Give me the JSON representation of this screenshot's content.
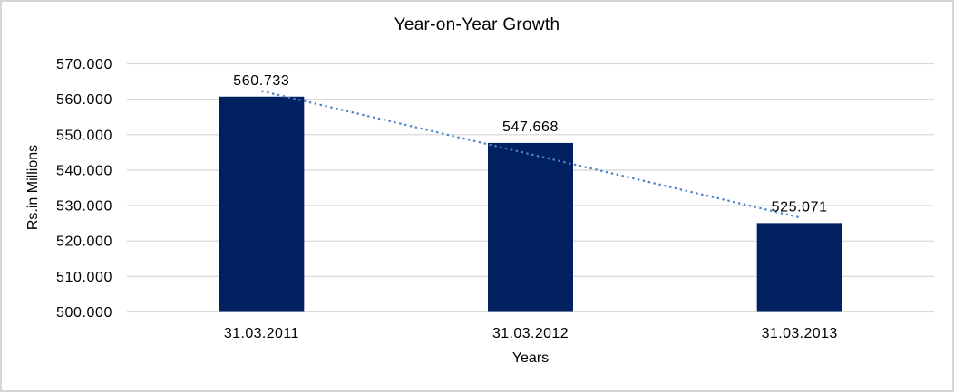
{
  "colors": {
    "bar": "#002060",
    "trendline": "#4d82c4",
    "gridline": "#d9d9d9",
    "text": "#000000",
    "frame_border": "#d5d5d5",
    "background": "#ffffff"
  },
  "chart_data": {
    "type": "bar",
    "title": "Year-on-Year Growth",
    "xlabel": "Years",
    "ylabel": "Rs.in Millions",
    "categories": [
      "31.03.2011",
      "31.03.2012",
      "31.03.2013"
    ],
    "series": [
      {
        "name": "Rs.in Millions",
        "values": [
          560733,
          547668,
          525071
        ]
      }
    ],
    "data_labels": [
      "560.733",
      "547.668",
      "525.071"
    ],
    "y_ticks": [
      {
        "value": 570000,
        "label": "570.000"
      },
      {
        "value": 560000,
        "label": "560.000"
      },
      {
        "value": 550000,
        "label": "550.000"
      },
      {
        "value": 540000,
        "label": "540.000"
      },
      {
        "value": 530000,
        "label": "530.000"
      },
      {
        "value": 520000,
        "label": "520.000"
      },
      {
        "value": 510000,
        "label": "510.000"
      },
      {
        "value": 500000,
        "label": "500.000"
      }
    ],
    "ylim": [
      500000,
      570000
    ],
    "grid": true,
    "legend": "none",
    "trendline": {
      "type": "linear",
      "style": "dotted"
    }
  }
}
